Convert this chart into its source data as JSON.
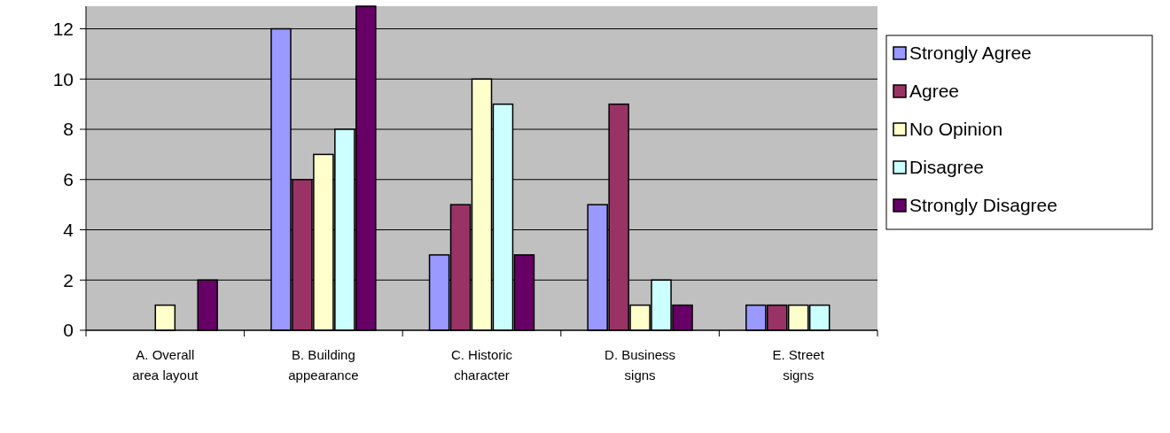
{
  "chart_data": {
    "type": "bar",
    "categories": [
      "A. Overall area layout",
      "B. Building appearance",
      "C. Historic character",
      "D. Business signs",
      "E. Street signs"
    ],
    "series": [
      {
        "name": "Strongly Agree",
        "color": "#9999ff",
        "values": [
          null,
          12,
          3,
          5,
          1
        ]
      },
      {
        "name": "Agree",
        "color": "#993366",
        "values": [
          null,
          6,
          5,
          9,
          1
        ]
      },
      {
        "name": "No Opinion",
        "color": "#ffffcc",
        "values": [
          1,
          7,
          10,
          1,
          1
        ]
      },
      {
        "name": "Disagree",
        "color": "#ccffff",
        "values": [
          null,
          8,
          9,
          2,
          1
        ]
      },
      {
        "name": "Strongly Disagree",
        "color": "#660066",
        "values": [
          2,
          12.9,
          3,
          1,
          null
        ]
      }
    ],
    "ylim": [
      0,
      12.9
    ],
    "yticks": [
      0,
      2,
      4,
      6,
      8,
      10,
      12
    ],
    "grid": "y",
    "legend": "right"
  }
}
